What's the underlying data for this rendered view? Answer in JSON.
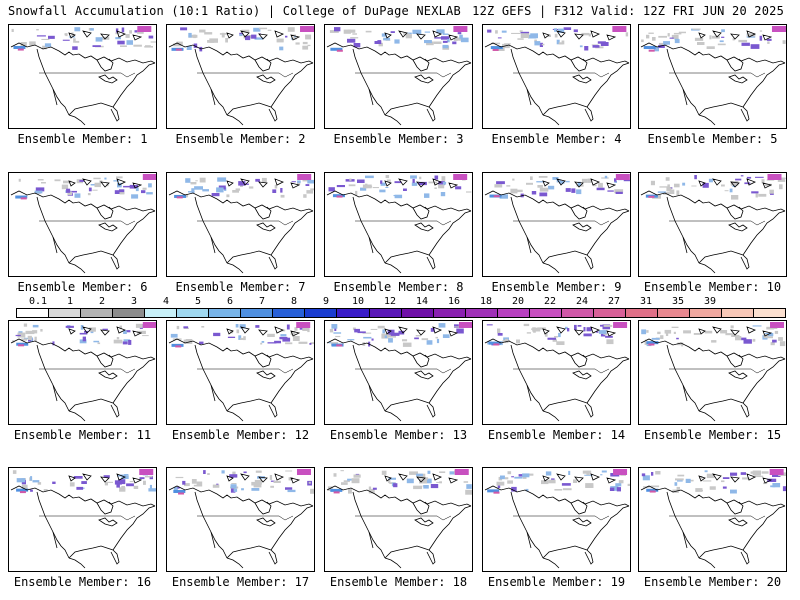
{
  "header": {
    "left_title": "Snowfall Accumulation (10:1 Ratio) | College of DuPage NEXLAB",
    "right_title": "12Z GEFS | F312 Valid: 12Z FRI JUN 20 2025"
  },
  "panels": [
    {
      "label": "Ensemble Member: 1"
    },
    {
      "label": "Ensemble Member: 2"
    },
    {
      "label": "Ensemble Member: 3"
    },
    {
      "label": "Ensemble Member: 4"
    },
    {
      "label": "Ensemble Member: 5"
    },
    {
      "label": "Ensemble Member: 6"
    },
    {
      "label": "Ensemble Member: 7"
    },
    {
      "label": "Ensemble Member: 8"
    },
    {
      "label": "Ensemble Member: 9"
    },
    {
      "label": "Ensemble Member: 10"
    },
    {
      "label": "Ensemble Member: 11"
    },
    {
      "label": "Ensemble Member: 12"
    },
    {
      "label": "Ensemble Member: 13"
    },
    {
      "label": "Ensemble Member: 14"
    },
    {
      "label": "Ensemble Member: 15"
    },
    {
      "label": "Ensemble Member: 16"
    },
    {
      "label": "Ensemble Member: 17"
    },
    {
      "label": "Ensemble Member: 18"
    },
    {
      "label": "Ensemble Member: 19"
    },
    {
      "label": "Ensemble Member: 20"
    }
  ],
  "colorbar": {
    "labels": [
      "0.1",
      "1",
      "2",
      "3",
      "4",
      "5",
      "6",
      "7",
      "8",
      "9",
      "10",
      "12",
      "14",
      "16",
      "18",
      "20",
      "22",
      "24",
      "27",
      "31",
      "35",
      "39"
    ],
    "colors": [
      "#ffffff",
      "#d9d9d9",
      "#b3b3b3",
      "#8c8c8c",
      "#c8f0f8",
      "#a0d8f0",
      "#78b4e8",
      "#5090e0",
      "#2860d8",
      "#1a3cd0",
      "#3a1cc8",
      "#5a18b8",
      "#7010a8",
      "#8a20b0",
      "#a030b8",
      "#b840c0",
      "#c850c0",
      "#d058a8",
      "#d86098",
      "#e07088",
      "#e88890",
      "#f0a8a0",
      "#f8c8b8",
      "#fce0d0"
    ]
  }
}
